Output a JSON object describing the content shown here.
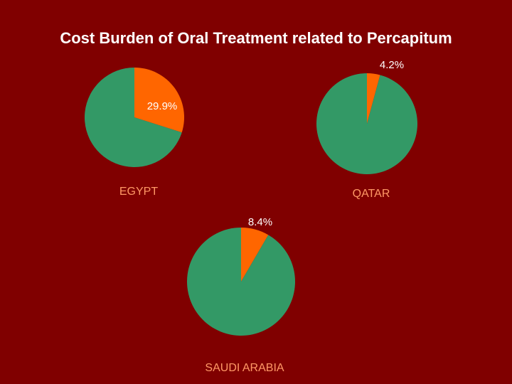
{
  "title": "Cost Burden of Oral Treatment related to Percapitum",
  "chart_data": [
    {
      "type": "pie",
      "title": "EGYPT",
      "values": [
        29.9,
        70.1
      ],
      "value_labels": [
        "29.9%",
        null
      ],
      "colors": [
        "#ff6600",
        "#339966"
      ]
    },
    {
      "type": "pie",
      "title": "QATAR",
      "values": [
        4.2,
        95.8
      ],
      "value_labels": [
        "4.2%",
        null
      ],
      "colors": [
        "#ff6600",
        "#339966"
      ]
    },
    {
      "type": "pie",
      "title": "SAUDI ARABIA",
      "values": [
        8.4,
        91.6
      ],
      "value_labels": [
        "8.4%",
        null
      ],
      "colors": [
        "#ff6600",
        "#339966"
      ]
    }
  ]
}
